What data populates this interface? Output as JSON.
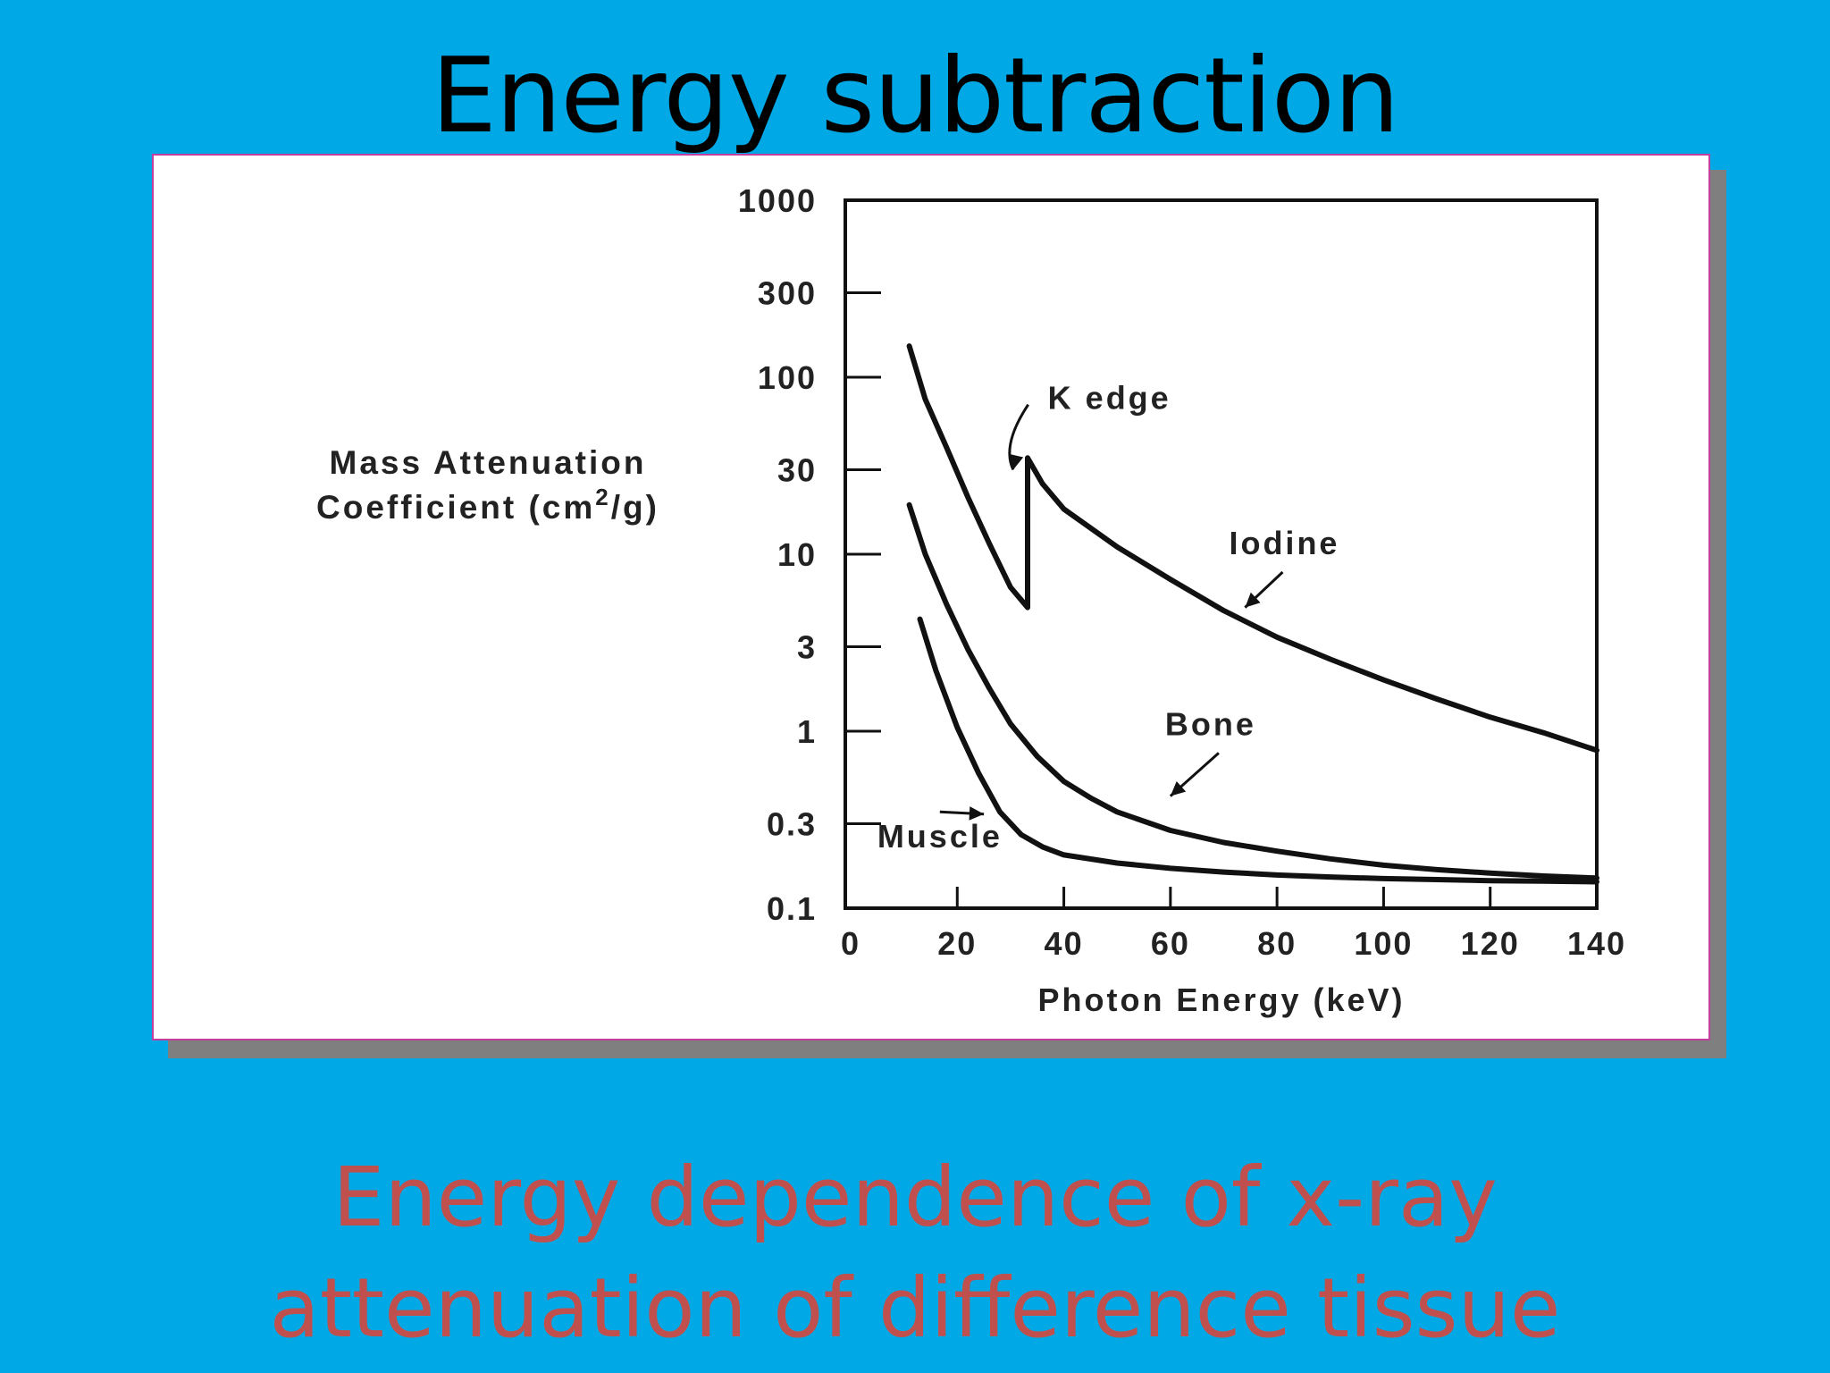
{
  "slide": {
    "title": "Energy subtraction",
    "caption_lines": [
      "Energy  dependence of x-ray",
      "attenuation of difference tissue"
    ]
  },
  "colors": {
    "background": "#00a9e6",
    "caption": "#c0504d",
    "panel_border": "#c23fa0",
    "ink": "#111111"
  },
  "chart_data": {
    "type": "line",
    "xlabel": "Photon Energy (keV)",
    "ylabel_line1": "Mass Attenuation",
    "ylabel_line2_a": "Coefficient (cm",
    "ylabel_sup": "2",
    "ylabel_line2_b": "/g)",
    "xlim": [
      0,
      140
    ],
    "ylim": [
      0.1,
      1000
    ],
    "y_scale": "log",
    "x_ticks": [
      0,
      20,
      40,
      60,
      80,
      100,
      120,
      140
    ],
    "x_tick_labels": [
      "0",
      "20",
      "40",
      "60",
      "80",
      "100",
      "120",
      "140"
    ],
    "y_ticks": [
      0.1,
      0.3,
      1,
      3,
      10,
      30,
      100,
      300,
      1000
    ],
    "y_tick_labels": [
      "0.1",
      "0.3",
      "1",
      "3",
      "10",
      "30",
      "100",
      "300",
      "1000"
    ],
    "grid": false,
    "series": [
      {
        "name": "Iodine",
        "x": [
          11,
          14,
          18,
          22,
          26,
          30,
          33.2,
          33.2,
          36,
          40,
          50,
          60,
          70,
          80,
          90,
          100,
          110,
          120,
          130,
          140
        ],
        "y": [
          150,
          75,
          40,
          21,
          11.5,
          6.5,
          5.0,
          35,
          25,
          18,
          11,
          7.2,
          4.8,
          3.4,
          2.55,
          1.95,
          1.52,
          1.2,
          0.98,
          0.78
        ]
      },
      {
        "name": "Bone",
        "x": [
          11,
          14,
          18,
          22,
          26,
          30,
          35,
          40,
          45,
          50,
          60,
          70,
          80,
          90,
          100,
          110,
          120,
          130,
          140
        ],
        "y": [
          19,
          10,
          5.2,
          2.9,
          1.75,
          1.1,
          0.72,
          0.52,
          0.42,
          0.35,
          0.275,
          0.235,
          0.21,
          0.19,
          0.175,
          0.165,
          0.158,
          0.152,
          0.148
        ]
      },
      {
        "name": "Muscle",
        "x": [
          13,
          16,
          20,
          24,
          28,
          32,
          36,
          40,
          50,
          60,
          70,
          80,
          90,
          100,
          110,
          120,
          130,
          140
        ],
        "y": [
          4.3,
          2.2,
          1.05,
          0.58,
          0.35,
          0.26,
          0.222,
          0.2,
          0.18,
          0.168,
          0.16,
          0.154,
          0.15,
          0.147,
          0.145,
          0.143,
          0.142,
          0.141
        ]
      }
    ],
    "annotations": [
      {
        "text": "K  edge",
        "x": 37,
        "y": 66,
        "arrow_to": [
          30.5,
          30
        ]
      },
      {
        "text": "Iodine",
        "x": 71,
        "y": 10,
        "arrow_to": [
          74,
          5
        ]
      },
      {
        "text": "Bone",
        "x": 59,
        "y": 0.95,
        "arrow_to": [
          60,
          0.43
        ]
      },
      {
        "text": "Muscle",
        "x": 5,
        "y": 0.22,
        "arrow_to": [
          25,
          0.34
        ]
      }
    ]
  }
}
